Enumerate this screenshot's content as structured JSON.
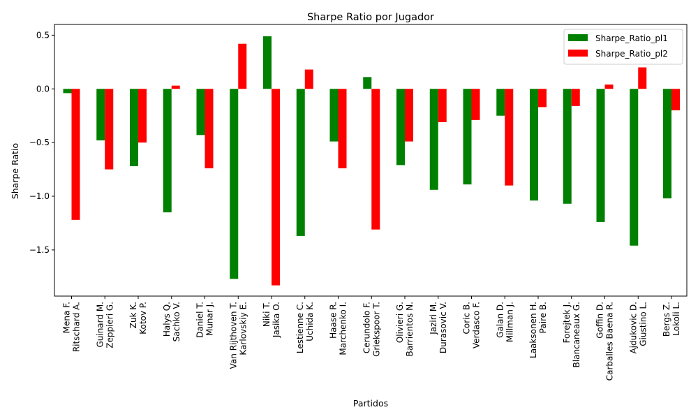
{
  "chart_data": {
    "type": "bar",
    "title": "Sharpe Ratio por Jugador",
    "xlabel": "Partidos",
    "ylabel": "Sharpe Ratio",
    "ylim": [
      -1.93,
      0.6
    ],
    "yticks": [
      0.5,
      0.0,
      -0.5,
      -1.0,
      -1.5
    ],
    "ytick_labels": [
      "0.5",
      "0.0",
      "−0.5",
      "−1.0",
      "−1.5"
    ],
    "legend_position": "top-right",
    "categories": [
      [
        "Mena F.",
        "Ritschard A."
      ],
      [
        "Guinard M.",
        "Zeppieri G."
      ],
      [
        "Zuk K.",
        "Kotov P."
      ],
      [
        "Halys Q.",
        "Sachko V."
      ],
      [
        "Daniel T.",
        "Munar J."
      ],
      [
        "Van Rijthoven T.",
        "Karlovskiy E."
      ],
      [
        "Niki T.",
        "Jasika O."
      ],
      [
        "Lestienne C.",
        "Uchida K."
      ],
      [
        "Haase R.",
        "Marchenko I."
      ],
      [
        "Cerundolo F.",
        "Griekspoor T."
      ],
      [
        "Olivieri G.",
        "Barrientos N."
      ],
      [
        "Jaziri M.",
        "Durasovic V."
      ],
      [
        "Coric B.",
        "Verdasco F."
      ],
      [
        "Galan D.",
        "Millman J."
      ],
      [
        "Laaksonen H.",
        "Paire B."
      ],
      [
        "Forejtek J.",
        "Blancaneaux G."
      ],
      [
        "Goffin D.",
        "Carballes Baena R."
      ],
      [
        "Ajdukovic D.",
        "Giustino L."
      ],
      [
        "Bergs Z.",
        "Lokoli L."
      ]
    ],
    "series": [
      {
        "name": "Sharpe_Ratio_pl1",
        "color": "#008000",
        "values": [
          -0.04,
          -0.48,
          -0.72,
          -1.15,
          -0.43,
          -1.77,
          0.49,
          -1.37,
          -0.49,
          0.11,
          -0.71,
          -0.94,
          -0.89,
          -0.25,
          -1.04,
          -1.07,
          -1.24,
          -1.46,
          -1.02
        ]
      },
      {
        "name": "Sharpe_Ratio_pl2",
        "color": "#ff0000",
        "values": [
          -1.22,
          -0.75,
          -0.5,
          0.03,
          -0.74,
          0.42,
          -1.83,
          0.18,
          -0.74,
          -1.31,
          -0.49,
          -0.31,
          -0.29,
          -0.9,
          -0.17,
          -0.16,
          0.04,
          0.2,
          -0.2
        ]
      }
    ]
  }
}
